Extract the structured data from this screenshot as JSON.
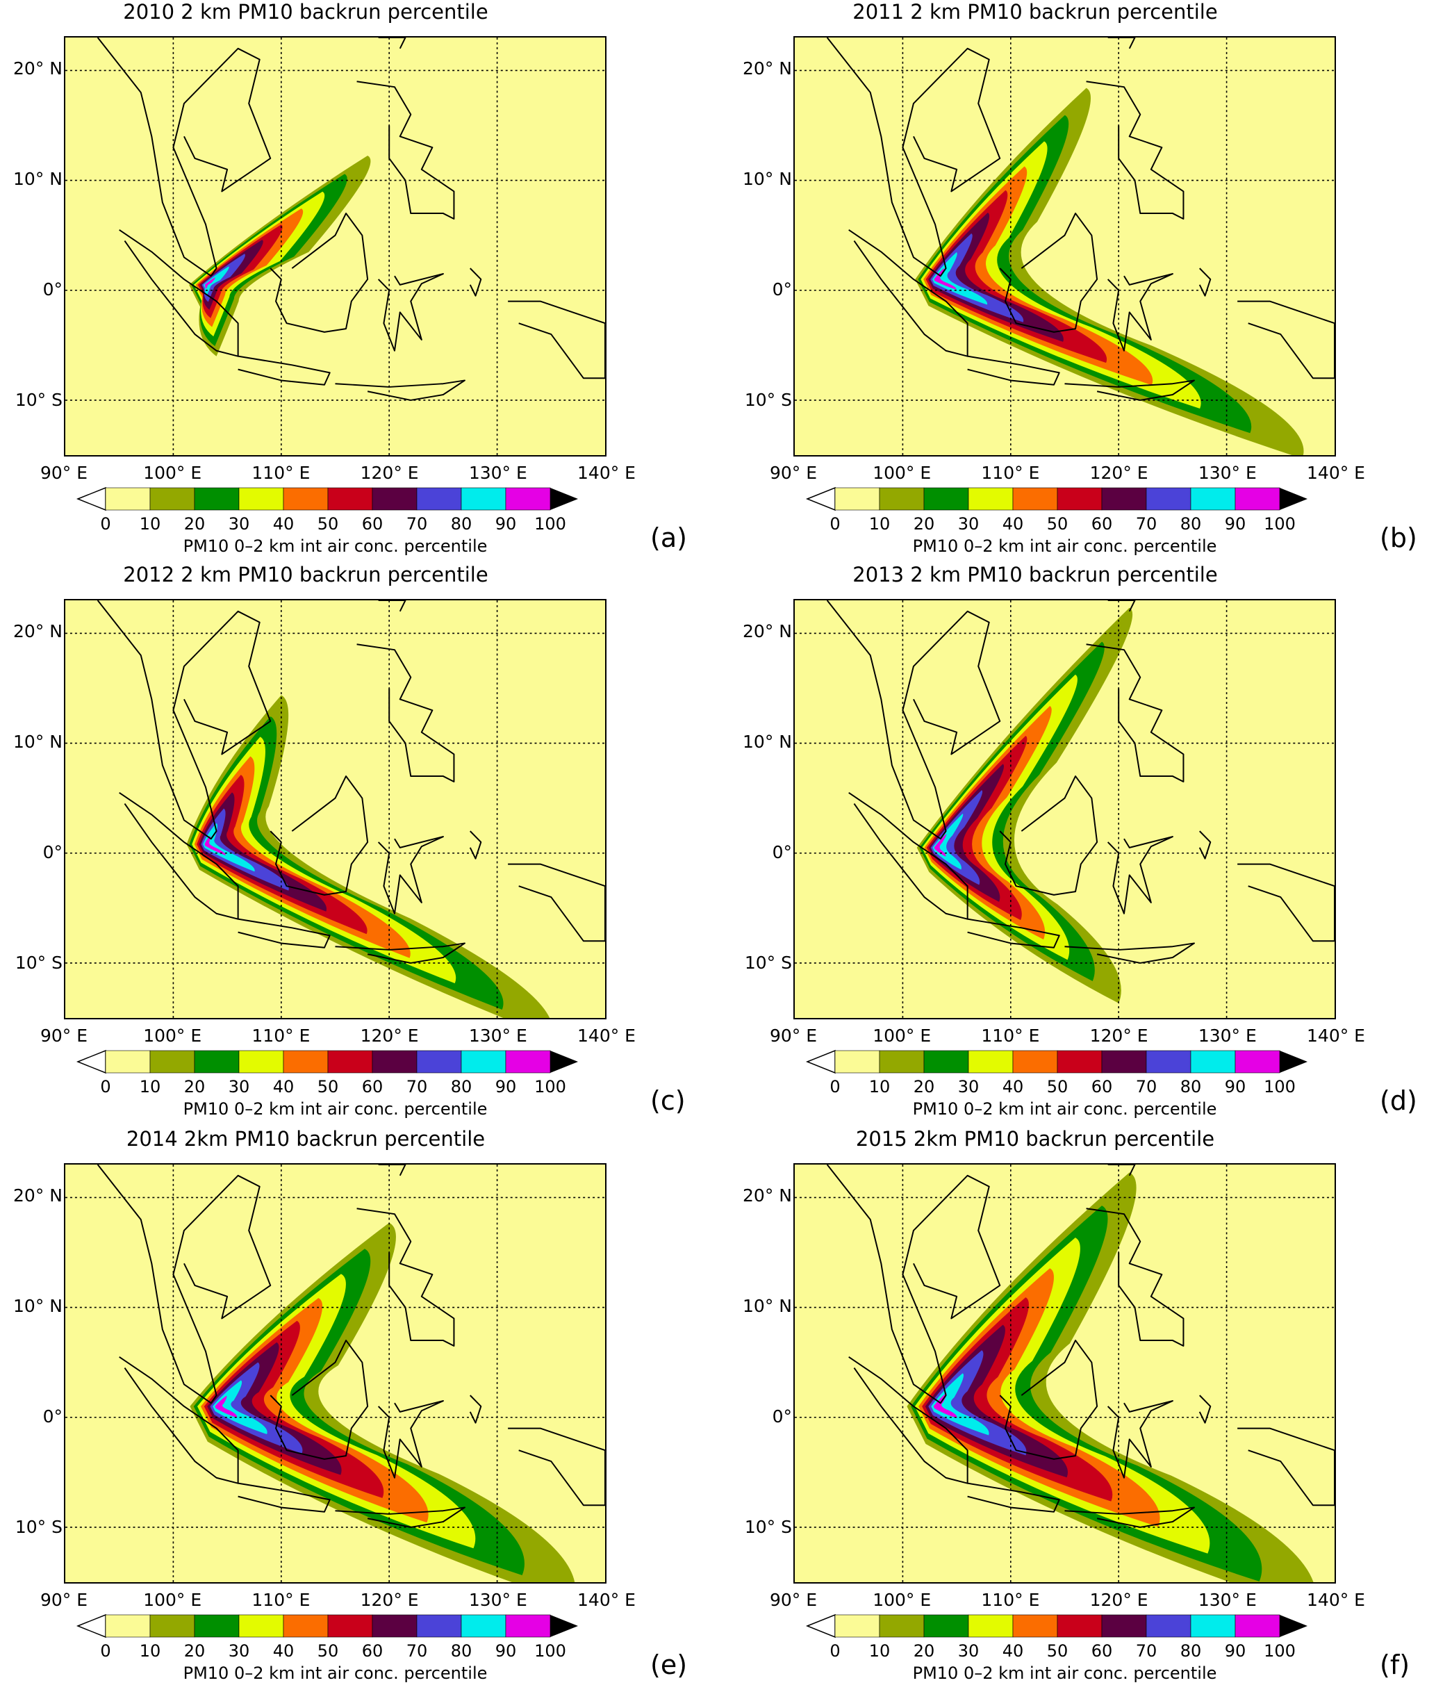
{
  "panels": [
    {
      "title": "2010 2 km PM10 backrun percentile",
      "label": "(a)"
    },
    {
      "title": "2011 2 km PM10 backrun percentile",
      "label": "(b)"
    },
    {
      "title": "2012 2 km PM10 backrun percentile",
      "label": "(c)"
    },
    {
      "title": "2013 2 km PM10 backrun percentile",
      "label": "(d)"
    },
    {
      "title": "2014 2km PM10 backrun percentile",
      "label": "(e)"
    },
    {
      "title": "2015 2km PM10 backrun percentile",
      "label": "(f)"
    }
  ],
  "lat_labels": [
    "20° N",
    "10° N",
    "0°",
    "10° S"
  ],
  "lon_labels": [
    "90° E",
    "100° E",
    "110° E",
    "120° E",
    "130° E",
    "140° E"
  ],
  "colorbar": {
    "label": "PM10 0–2 km int air conc. percentile",
    "ticks": [
      "0",
      "10",
      "20",
      "30",
      "40",
      "50",
      "60",
      "70",
      "80",
      "90",
      "100"
    ],
    "colors": [
      "#fbfb96",
      "#93a800",
      "#008f00",
      "#e3fb00",
      "#fb6d00",
      "#c9001a",
      "#5b0041",
      "#4b43d8",
      "#00ecec",
      "#e500e5",
      "#000000"
    ]
  }
}
